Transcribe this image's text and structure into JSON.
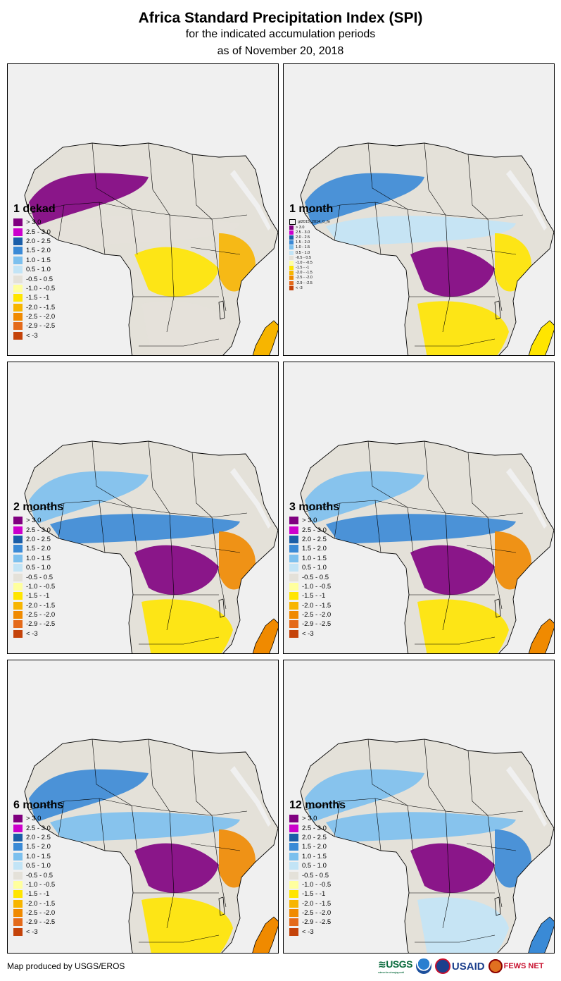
{
  "title": "Africa Standard Precipitation Index (SPI)",
  "subtitle": "for the indicated accumulation periods",
  "date_line": "as of November 20, 2018",
  "footer": "Map produced by USGS/EROS",
  "logos": [
    "USGS",
    "NOAA",
    "USAID",
    "FEWS NET"
  ],
  "logo_texts": {
    "usgs": "USGS",
    "usgs_tagline": "science for a changing world",
    "usaid": "USAID",
    "fews": "FEWS NET"
  },
  "colors": {
    "gt3": "#800080",
    "c25_30": "#cc00cc",
    "c20_25": "#1a5ea8",
    "c15_20": "#3a8ad6",
    "c10_15": "#7cc0ee",
    "c05_10": "#c2e4f6",
    "neutral": "#e4e1d9",
    "m10_05": "#ffff9e",
    "m15_10": "#ffe500",
    "m20_15": "#f7b500",
    "m25_20": "#f08a00",
    "m29_25": "#e46a1a",
    "ltm3": "#c4430a",
    "ocean": "#f0f0f0"
  },
  "legend_items": [
    {
      "label": "> 3.0",
      "color": "#800080"
    },
    {
      "label": "2.5 - 3.0",
      "color": "#cc00cc"
    },
    {
      "label": "2.0 - 2.5",
      "color": "#1a5ea8"
    },
    {
      "label": "1.5 - 2.0",
      "color": "#3a8ad6"
    },
    {
      "label": "1.0 - 1.5",
      "color": "#7cc0ee"
    },
    {
      "label": "0.5 - 1.0",
      "color": "#c2e4f6"
    },
    {
      "label": "-0.5 - 0.5",
      "color": "#e4e1d9"
    },
    {
      "label": "-1.0 - -0.5",
      "color": "#ffff9e"
    },
    {
      "label": "-1.5 - -1",
      "color": "#ffe500"
    },
    {
      "label": "-2.0 - -1.5",
      "color": "#f7b500"
    },
    {
      "label": "-2.5 - -2.0",
      "color": "#f08a00"
    },
    {
      "label": "-2.9 - -2.5",
      "color": "#e46a1a"
    },
    {
      "label": "< -3",
      "color": "#c4430a"
    }
  ],
  "legend_items_month": [
    {
      "label": "> 3.0",
      "color": "#800080"
    },
    {
      "label": "2.5 - 3.0",
      "color": "#cc00cc"
    },
    {
      "label": "2.0 - 2.5",
      "color": "#1a5ea8"
    },
    {
      "label": "1.5 - 2.0",
      "color": "#3a8ad6"
    },
    {
      "label": "1.0 - 1.5",
      "color": "#7cc0ee"
    },
    {
      "label": "0.5 - 1.0",
      "color": "#c2e4f6"
    },
    {
      "label": "-0.5 - 0.5",
      "color": "#e4e1d9"
    },
    {
      "label": "-1.0 - -0.5",
      "color": "#ffff9e"
    },
    {
      "label": "-1.5 - -1",
      "color": "#ffe500"
    },
    {
      "label": "-2.0 - -1.5",
      "color": "#f7b500"
    },
    {
      "label": "-2.5 - -2.0",
      "color": "#f08a00"
    },
    {
      "label": "-2.9 - -2.5",
      "color": "#e46a1a"
    },
    {
      "label": "< -3",
      "color": "#c4430a"
    }
  ],
  "panels": [
    {
      "name": "1 dekad",
      "legend_style": "full",
      "anomaly": {
        "wet_west": "#800080",
        "sahel": "#e4e1d9",
        "central": "#ffe500",
        "south": "#e4e1d9",
        "east": "#f7b500"
      }
    },
    {
      "name": "1 month",
      "legend_style": "small",
      "legend_caption": "gt2015_2014_0_fn",
      "anomaly": {
        "wet_west": "#3a8ad6",
        "sahel": "#c2e4f6",
        "central": "#800080",
        "south": "#ffe500",
        "east": "#ffe500"
      }
    },
    {
      "name": "2 months",
      "legend_style": "full",
      "anomaly": {
        "wet_west": "#7cc0ee",
        "sahel": "#3a8ad6",
        "central": "#800080",
        "south": "#ffe500",
        "east": "#f08a00"
      }
    },
    {
      "name": "3 months",
      "legend_style": "full",
      "anomaly": {
        "wet_west": "#7cc0ee",
        "sahel": "#3a8ad6",
        "central": "#800080",
        "south": "#ffe500",
        "east": "#f08a00"
      }
    },
    {
      "name": "6 months",
      "legend_style": "full",
      "anomaly": {
        "wet_west": "#3a8ad6",
        "sahel": "#7cc0ee",
        "central": "#800080",
        "south": "#ffe500",
        "east": "#f08a00"
      }
    },
    {
      "name": "12 months",
      "legend_style": "full",
      "anomaly": {
        "wet_west": "#7cc0ee",
        "sahel": "#7cc0ee",
        "central": "#800080",
        "south": "#c2e4f6",
        "east": "#3a8ad6"
      }
    }
  ]
}
